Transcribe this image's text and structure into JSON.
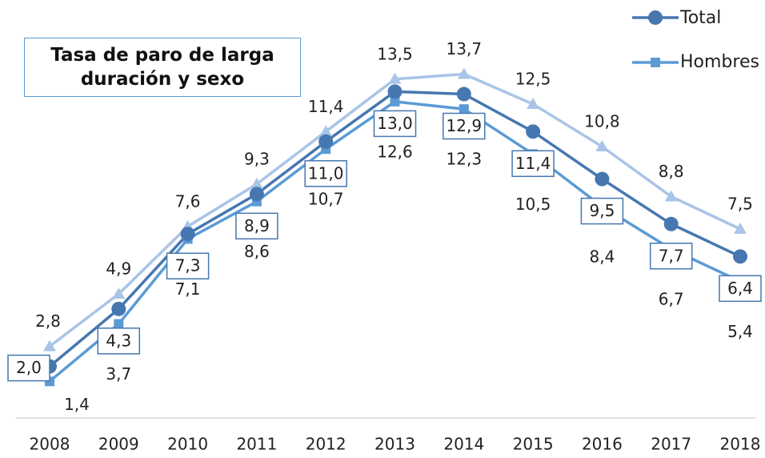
{
  "chart_data": {
    "type": "line",
    "title": "Tasa de paro de larga duración y sexo",
    "categories": [
      "2008",
      "2009",
      "2010",
      "2011",
      "2012",
      "2013",
      "2014",
      "2015",
      "2016",
      "2017",
      "2018"
    ],
    "ylim": [
      0,
      15
    ],
    "series": [
      {
        "name": "Total",
        "color": "#4677b0",
        "marker": "circle",
        "values": [
          2.0,
          4.3,
          7.3,
          8.9,
          11.0,
          13.0,
          12.9,
          11.4,
          9.5,
          7.7,
          6.4
        ],
        "value_labels": [
          "2,0",
          "4,3",
          "7,3",
          "8,9",
          "11,0",
          "13,0",
          "12,9",
          "11,4",
          "9,5",
          "7,7",
          "6,4"
        ]
      },
      {
        "name": "Hombres",
        "color": "#5b9bd5",
        "marker": "square",
        "values": [
          1.4,
          3.7,
          7.1,
          8.6,
          10.7,
          12.6,
          12.3,
          10.5,
          8.4,
          6.7,
          5.4
        ],
        "value_labels": [
          "1,4",
          "3,7",
          "7,1",
          "8,6",
          "10,7",
          "12,6",
          "12,3",
          "10,5",
          "8,4",
          "6,7",
          "5,4"
        ]
      },
      {
        "color": "#a9c4e6",
        "marker": "triangle",
        "values": [
          2.8,
          4.9,
          7.6,
          9.3,
          11.4,
          13.5,
          13.7,
          12.5,
          10.8,
          8.8,
          7.5
        ],
        "value_labels": [
          "2,8",
          "4,9",
          "7,6",
          "9,3",
          "11,4",
          "13,5",
          "13,7",
          "12,5",
          "10,8",
          "8,8",
          "7,5"
        ]
      }
    ]
  }
}
